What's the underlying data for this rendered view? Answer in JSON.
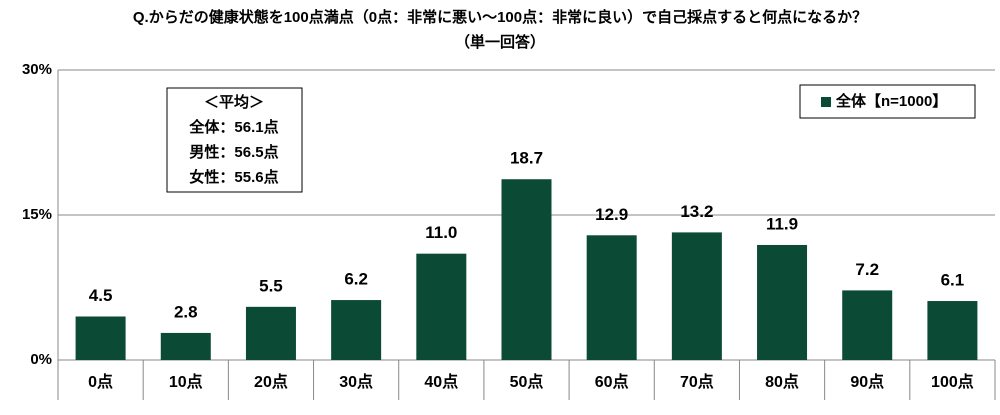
{
  "chart_data": {
    "type": "bar",
    "title": "Q.からだの健康状態を100点満点（0点：非常に悪い～100点：非常に良い）で自己採点すると何点になるか？",
    "subtitle": "（単一回答）",
    "categories": [
      "0点",
      "10点",
      "20点",
      "30点",
      "40点",
      "50点",
      "60点",
      "70点",
      "80点",
      "90点",
      "100点"
    ],
    "series": [
      {
        "name": "全体【n=1000】",
        "color": "#0b4a35",
        "values": [
          4.5,
          2.8,
          5.5,
          6.2,
          11.0,
          18.7,
          12.9,
          13.2,
          11.9,
          7.2,
          6.1
        ],
        "value_labels": [
          "4.5",
          "2.8",
          "5.5",
          "6.2",
          "11.0",
          "18.7",
          "12.9",
          "13.2",
          "11.9",
          "7.2",
          "6.1"
        ]
      }
    ],
    "ylim": [
      0,
      30
    ],
    "yticks": [
      {
        "value": 0,
        "label": "0%"
      },
      {
        "value": 15,
        "label": "15%"
      },
      {
        "value": 30,
        "label": "30%"
      }
    ],
    "grid": true,
    "legend": "upper right",
    "annotations": [
      "＜平均＞",
      "全体：56.1点",
      "男性：56.5点",
      "女性：55.6点"
    ]
  }
}
